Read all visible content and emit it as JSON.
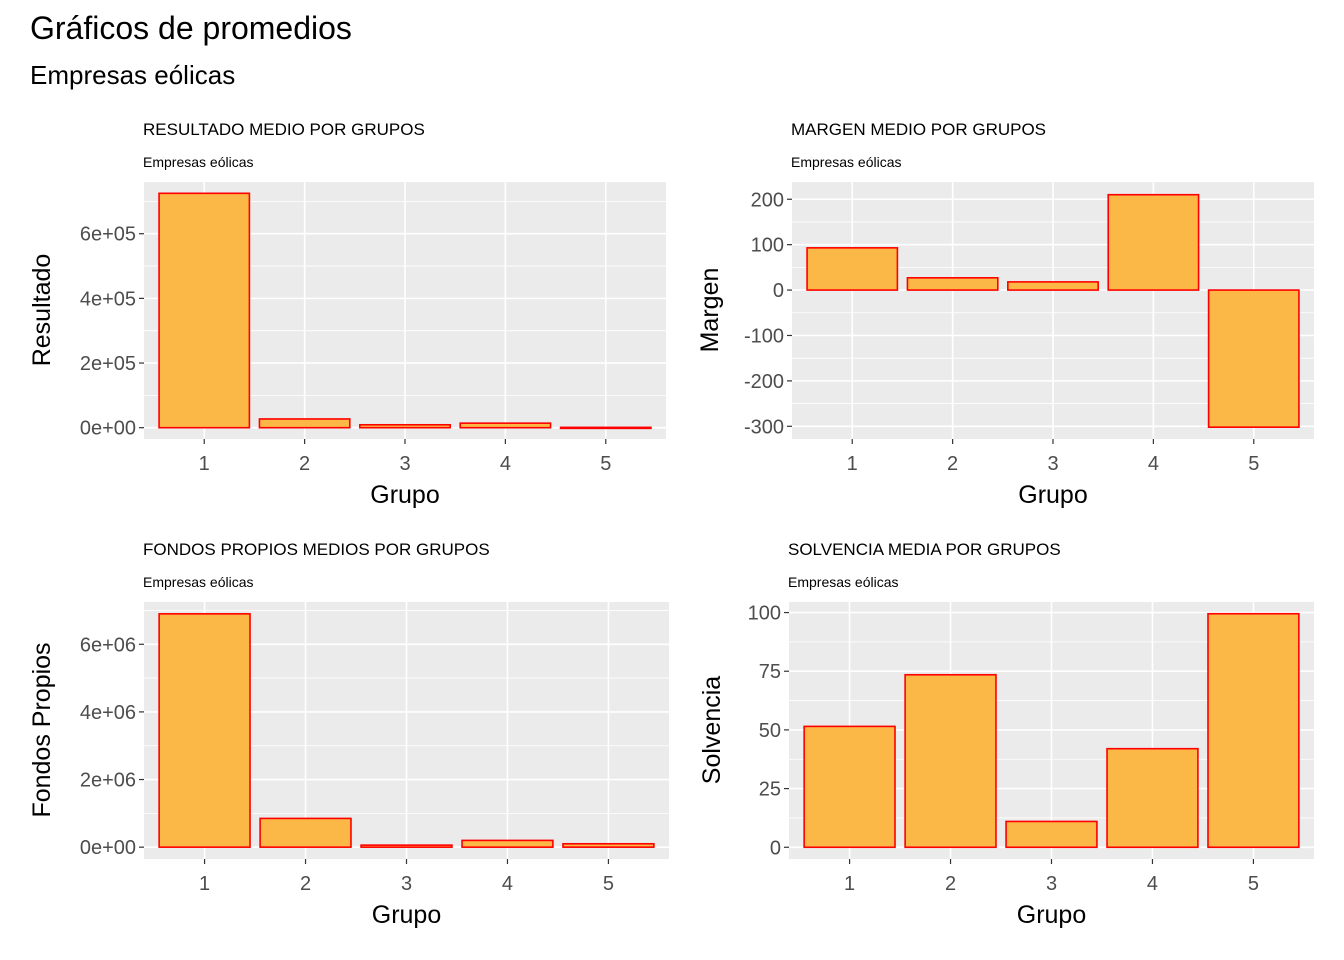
{
  "title": "Gráficos de promedios",
  "subtitle": "Empresas eólicas",
  "style": {
    "panel_background": "#EBEBEB",
    "grid_color": "#FFFFFF",
    "bar_fill": "#FBB847",
    "bar_stroke": "#FF0000",
    "tick_label_color": "#4D4D4D"
  },
  "chart_data": [
    {
      "type": "bar",
      "title": "RESULTADO MEDIO POR GRUPOS",
      "subtitle": "Empresas eólicas",
      "xlabel": "Grupo",
      "ylabel": "Resultado",
      "categories": [
        "1",
        "2",
        "3",
        "4",
        "5"
      ],
      "values": [
        725000,
        27000,
        9000,
        14000,
        1000
      ],
      "ylim": [
        -35000,
        760000
      ],
      "yticks": [
        0,
        200000,
        400000,
        600000
      ],
      "ytick_labels": [
        "0e+00",
        "2e+05",
        "4e+05",
        "6e+05"
      ],
      "grid": true,
      "legend": "none"
    },
    {
      "type": "bar",
      "title": "MARGEN MEDIO POR GRUPOS",
      "subtitle": "Empresas eólicas",
      "xlabel": "Grupo",
      "ylabel": "Margen",
      "categories": [
        "1",
        "2",
        "3",
        "4",
        "5"
      ],
      "values": [
        93,
        27,
        18,
        210,
        -302
      ],
      "ylim": [
        -328,
        238
      ],
      "yticks": [
        -300,
        -200,
        -100,
        0,
        100,
        200
      ],
      "ytick_labels": [
        "-300",
        "-200",
        "-100",
        "0",
        "100",
        "200"
      ],
      "grid": true,
      "legend": "none"
    },
    {
      "type": "bar",
      "title": "FONDOS PROPIOS MEDIOS POR GRUPOS",
      "subtitle": "Empresas eólicas",
      "xlabel": "Grupo",
      "ylabel": "Fondos Propios",
      "categories": [
        "1",
        "2",
        "3",
        "4",
        "5"
      ],
      "values": [
        6900000,
        850000,
        60000,
        200000,
        100000
      ],
      "ylim": [
        -350000,
        7250000
      ],
      "yticks": [
        0,
        2000000,
        4000000,
        6000000
      ],
      "ytick_labels": [
        "0e+00",
        "2e+06",
        "4e+06",
        "6e+06"
      ],
      "grid": true,
      "legend": "none"
    },
    {
      "type": "bar",
      "title": "SOLVENCIA MEDIA POR GRUPOS",
      "subtitle": "Empresas eólicas",
      "xlabel": "Grupo",
      "ylabel": "Solvencia",
      "categories": [
        "1",
        "2",
        "3",
        "4",
        "5"
      ],
      "values": [
        51.5,
        73.5,
        11,
        42,
        99.5
      ],
      "ylim": [
        -5,
        104.5
      ],
      "yticks": [
        0,
        25,
        50,
        75,
        100
      ],
      "ytick_labels": [
        "0",
        "25",
        "50",
        "75",
        "100"
      ],
      "grid": true,
      "legend": "none"
    }
  ]
}
